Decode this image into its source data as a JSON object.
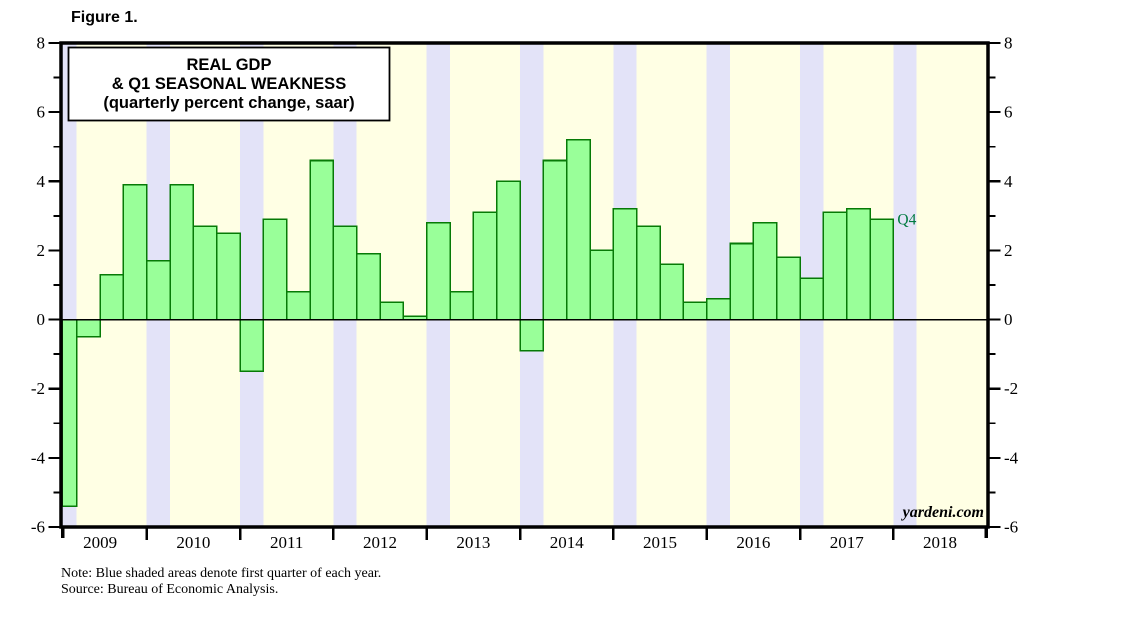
{
  "figure_label": "Figure 1.",
  "chart": {
    "title_lines": [
      "REAL GDP",
      "& Q1 SEASONAL WEAKNESS",
      "(quarterly percent change, saar)"
    ],
    "watermark": "yardeni.com",
    "annotation": {
      "label": "Q4"
    },
    "note": "Note: Blue shaded areas denote first quarter of each year.",
    "source": "Source: Bureau of Economic Analysis.",
    "colors": {
      "plot_background": "#FFFFE4",
      "q1_band": "#E3E3F8",
      "bar_fill": "#99FF99",
      "bar_stroke": "#067A06",
      "annotation_green": "#007A40",
      "axis_black": "#000000"
    }
  },
  "chart_data": {
    "type": "bar",
    "title": "REAL GDP & Q1 SEASONAL WEAKNESS (quarterly percent change, saar)",
    "xlabel": "",
    "ylabel": "",
    "ylim": [
      -6,
      8
    ],
    "y_major_ticks": [
      8,
      6,
      4,
      2,
      0,
      -2,
      -4,
      -6
    ],
    "y_minor_ticks": [
      7,
      5,
      3,
      1,
      -1,
      -3,
      -5
    ],
    "x_tick_years": [
      2009,
      2010,
      2011,
      2012,
      2013,
      2014,
      2015,
      2016,
      2017,
      2018
    ],
    "highlight_rule": "first quarter of each year shaded blue; 2018 Q1 band shown with no bar yet",
    "legend": "none",
    "grid": "off",
    "last_bar_annotation": "Q4",
    "categories": [
      "2009 Q1",
      "2009 Q2",
      "2009 Q3",
      "2009 Q4",
      "2010 Q1",
      "2010 Q2",
      "2010 Q3",
      "2010 Q4",
      "2011 Q1",
      "2011 Q2",
      "2011 Q3",
      "2011 Q4",
      "2012 Q1",
      "2012 Q2",
      "2012 Q3",
      "2012 Q4",
      "2013 Q1",
      "2013 Q2",
      "2013 Q3",
      "2013 Q4",
      "2014 Q1",
      "2014 Q2",
      "2014 Q3",
      "2014 Q4",
      "2015 Q1",
      "2015 Q2",
      "2015 Q3",
      "2015 Q4",
      "2016 Q1",
      "2016 Q2",
      "2016 Q3",
      "2016 Q4",
      "2017 Q1",
      "2017 Q2",
      "2017 Q3",
      "2017 Q4"
    ],
    "values": [
      -5.4,
      -0.5,
      1.3,
      3.9,
      1.7,
      3.9,
      2.7,
      2.5,
      -1.5,
      2.9,
      0.8,
      4.6,
      2.7,
      1.9,
      0.5,
      0.1,
      2.8,
      0.8,
      3.1,
      4.0,
      -0.9,
      4.6,
      5.2,
      2.0,
      3.2,
      2.7,
      1.6,
      0.5,
      0.6,
      2.2,
      2.8,
      1.8,
      1.2,
      3.1,
      3.2,
      2.9
    ]
  }
}
